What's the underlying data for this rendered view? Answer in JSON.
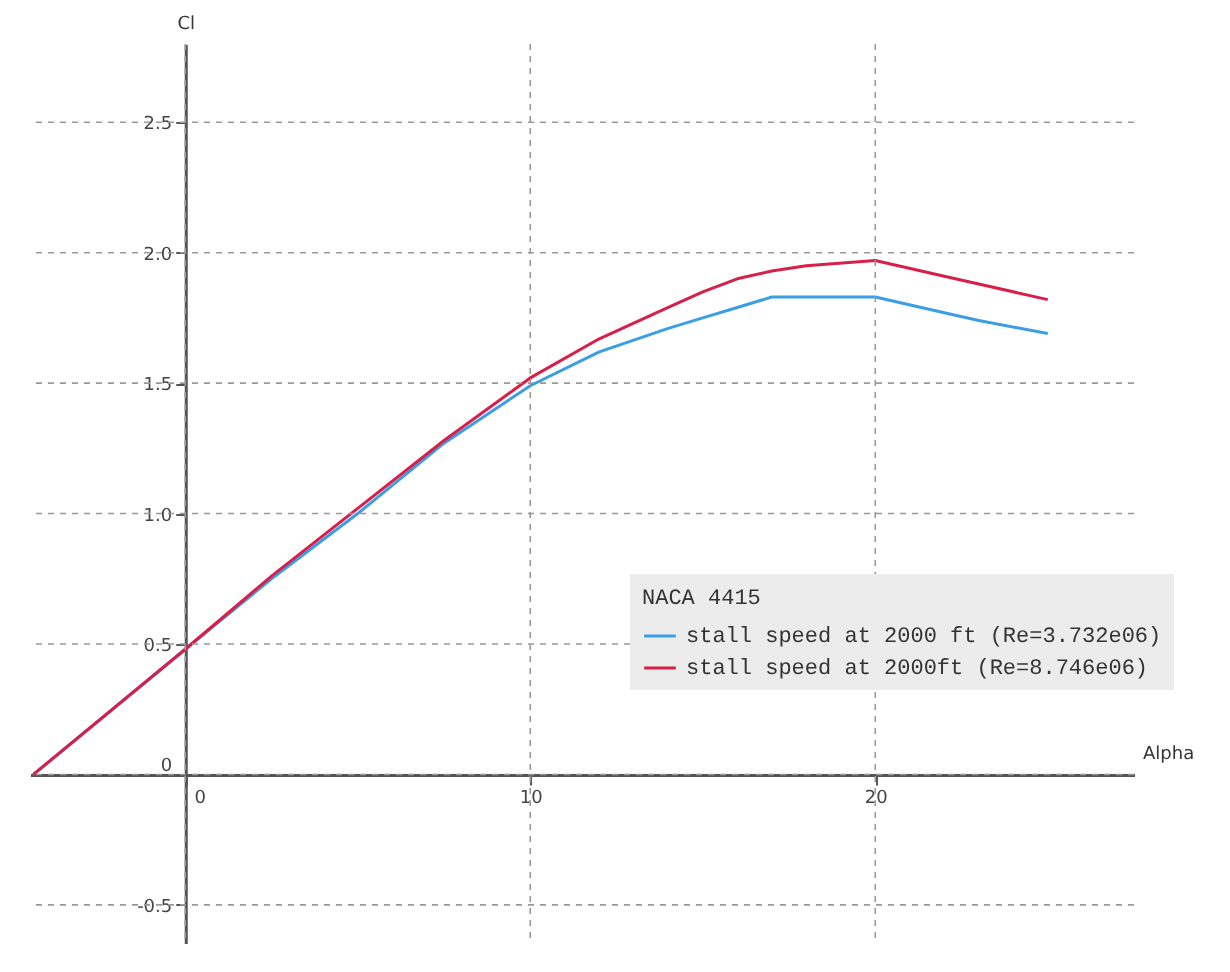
{
  "chart_data": {
    "type": "line",
    "xlabel": "Alpha",
    "ylabel": "Cl",
    "legend_title": "NACA 4415",
    "x": [
      -4.4,
      0,
      2.5,
      5,
      7.5,
      10,
      12,
      14,
      15,
      16,
      17,
      18,
      20,
      22,
      23,
      25
    ],
    "series": [
      {
        "name": "stall speed at 2000 ft (Re=3.732e06)",
        "color": "#3a9ee6",
        "values": [
          0,
          0.48,
          0.75,
          1.0,
          1.27,
          1.49,
          1.62,
          1.71,
          1.75,
          1.79,
          1.83,
          1.83,
          1.83,
          1.77,
          1.74,
          1.69
        ]
      },
      {
        "name": "stall speed at 2000ft (Re=8.746e06)",
        "color": "#d81f4a",
        "values": [
          0,
          0.48,
          0.76,
          1.02,
          1.28,
          1.52,
          1.67,
          1.79,
          1.85,
          1.9,
          1.93,
          1.95,
          1.97,
          1.91,
          1.88,
          1.82
        ]
      }
    ],
    "xlim": [
      -4.5,
      27.5
    ],
    "xticks": [
      0,
      10,
      20
    ],
    "ylim": [
      -0.65,
      2.8
    ],
    "yticks": [
      {
        "value": -0.5,
        "label": "-0.5"
      },
      0,
      {
        "value": 0.5,
        "label": "0.5"
      },
      {
        "value": 1,
        "label": "1.0"
      },
      {
        "value": 1.5,
        "label": "1.5"
      },
      {
        "value": 2,
        "label": "2.0"
      },
      {
        "value": 2.5,
        "label": "2.5"
      }
    ],
    "grid": true,
    "legend": "right"
  }
}
